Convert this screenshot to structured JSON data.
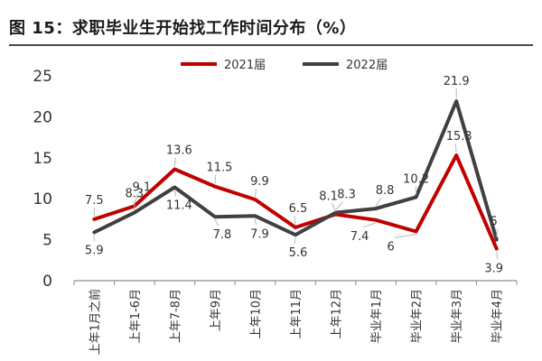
{
  "figure_title": "图 15：求职毕业生开始找工作时间分布（%）",
  "chart_data": {
    "type": "line",
    "title": "图 15：求职毕业生开始找工作时间分布（%）",
    "unit": "%",
    "categories": [
      "上年1月之前",
      "上年1-6月",
      "上年7-8月",
      "上年9月",
      "上年10月",
      "上年11月",
      "上年12月",
      "毕业年1月",
      "毕业年2月",
      "毕业年3月",
      "毕业年4月"
    ],
    "series": [
      {
        "name": "2021届",
        "color": "#c00000",
        "values": [
          7.5,
          9.1,
          13.6,
          11.5,
          9.9,
          6.5,
          8.1,
          7.4,
          6,
          15.3,
          3.9
        ]
      },
      {
        "name": "2022届",
        "color": "#404040",
        "values": [
          5.9,
          8.3,
          11.4,
          7.8,
          7.9,
          5.6,
          8.3,
          8.8,
          10.2,
          21.9,
          5
        ]
      }
    ],
    "data_labels": [
      {
        "series": 0,
        "index": 0,
        "text": "7.5"
      },
      {
        "series": 0,
        "index": 1,
        "text": "9.1"
      },
      {
        "series": 0,
        "index": 2,
        "text": "13.6"
      },
      {
        "series": 0,
        "index": 3,
        "text": "11.5"
      },
      {
        "series": 0,
        "index": 4,
        "text": "9.9"
      },
      {
        "series": 0,
        "index": 5,
        "text": "6.5"
      },
      {
        "series": 0,
        "index": 6,
        "text": "8.1"
      },
      {
        "series": 0,
        "index": 7,
        "text": "7.4"
      },
      {
        "series": 0,
        "index": 8,
        "text": "6"
      },
      {
        "series": 0,
        "index": 9,
        "text": "15.3"
      },
      {
        "series": 0,
        "index": 10,
        "text": "3.9"
      },
      {
        "series": 1,
        "index": 0,
        "text": "5.9"
      },
      {
        "series": 1,
        "index": 1,
        "text": "8.3"
      },
      {
        "series": 1,
        "index": 2,
        "text": "11.4"
      },
      {
        "series": 1,
        "index": 3,
        "text": "7.8"
      },
      {
        "series": 1,
        "index": 4,
        "text": "7.9"
      },
      {
        "series": 1,
        "index": 5,
        "text": "5.6"
      },
      {
        "series": 1,
        "index": 6,
        "text": "8.3"
      },
      {
        "series": 1,
        "index": 7,
        "text": "8.8"
      },
      {
        "series": 1,
        "index": 8,
        "text": "10.2"
      },
      {
        "series": 1,
        "index": 9,
        "text": "21.9"
      },
      {
        "series": 1,
        "index": 10,
        "text": "5"
      }
    ],
    "ylim": [
      0,
      25
    ],
    "yticks": [
      0,
      5,
      10,
      15,
      20,
      25
    ],
    "grid": false,
    "legend_position": "top-center"
  }
}
